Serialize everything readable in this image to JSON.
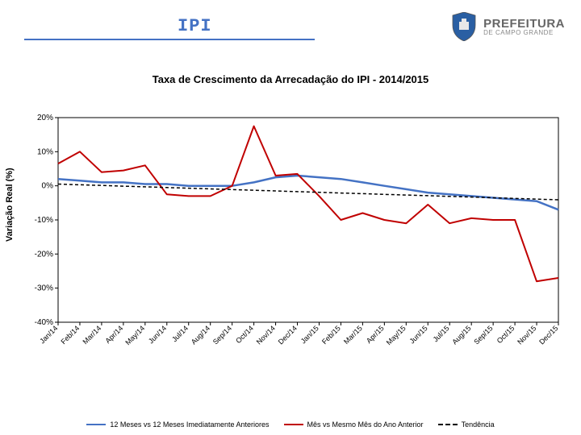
{
  "header": {
    "title": "IPI",
    "logo": {
      "pref_big": "PREFEITURA",
      "pref_small": "DE CAMPO GRANDE"
    }
  },
  "chart": {
    "type": "line",
    "title": "Taxa de Crescimento da Arrecadação do IPI - 2014/2015",
    "ylabel": "Variação Real (%)",
    "ylim": [
      -40,
      20
    ],
    "ytick_step": 10,
    "yticks": [
      20,
      10,
      0,
      -10,
      -20,
      -30,
      -40
    ],
    "ytick_labels": [
      "20%",
      "10%",
      "0%",
      "-10%",
      "-20%",
      "-30%",
      "-40%"
    ],
    "categories": [
      "Jan/14",
      "Feb/14",
      "Mar/14",
      "Apr/14",
      "May/14",
      "Jun/14",
      "Jul/14",
      "Aug/14",
      "Sep/14",
      "Oct/14",
      "Nov/14",
      "Dec/14",
      "Jan/15",
      "Feb/15",
      "Mar/15",
      "Apr/15",
      "May/15",
      "Jun/15",
      "Jul/15",
      "Aug/15",
      "Sep/15",
      "Oct/15",
      "Nov/15",
      "Dec/15"
    ],
    "series": [
      {
        "name": "12 Meses vs 12 Meses Imediatamente Anteriores",
        "color": "#4472c4",
        "width": 2.5,
        "dash": null,
        "values": [
          2,
          1.5,
          1.0,
          1.0,
          0.5,
          0.5,
          0.0,
          0.0,
          0.0,
          1.0,
          2.5,
          3.0,
          2.5,
          2.0,
          1.0,
          0.0,
          -1.0,
          -2.0,
          -2.5,
          -3.0,
          -3.5,
          -4.0,
          -4.5,
          -7.0
        ]
      },
      {
        "name": "Mês vs Mesmo Mês do Ano Anterior",
        "color": "#c00000",
        "width": 2,
        "dash": null,
        "values": [
          6.5,
          10.0,
          4.0,
          4.5,
          6.0,
          -2.5,
          -3.0,
          -3.0,
          0.0,
          17.5,
          3.0,
          3.5,
          -3.0,
          -10.0,
          -8.0,
          -10.0,
          -11.0,
          -5.5,
          -11.0,
          -9.5,
          -10.0,
          -10.0,
          -28.0,
          -27.0
        ]
      },
      {
        "name": "Tendência",
        "color": "#000000",
        "width": 1.5,
        "dash": "4 3",
        "values": [
          0.5,
          0.3,
          0.1,
          -0.1,
          -0.3,
          -0.5,
          -0.7,
          -0.9,
          -1.1,
          -1.3,
          -1.5,
          -1.7,
          -1.9,
          -2.1,
          -2.3,
          -2.5,
          -2.7,
          -2.9,
          -3.1,
          -3.3,
          -3.5,
          -3.7,
          -3.9,
          -4.1
        ]
      }
    ],
    "background_color": "#ffffff",
    "grid_color": "#000000",
    "axis_color": "#000000",
    "label_fontsize": 11,
    "tick_fontsize": 10,
    "xtick_fontsize": 9,
    "xtick_rotation": -45
  }
}
